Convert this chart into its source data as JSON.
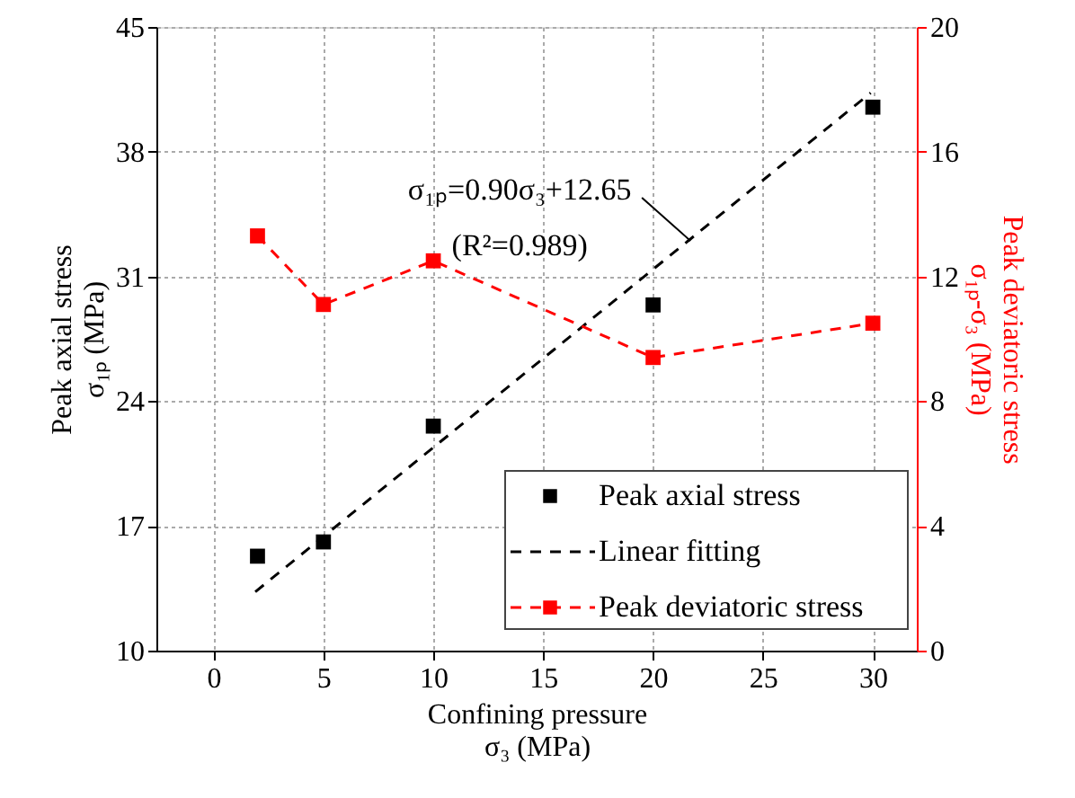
{
  "chart_data": {
    "type": "scatter",
    "xlabel": "Confining pressure\nσ₃ (MPa)",
    "ylabel": "Peak axial stress\nσ₁ₚ (MPa)",
    "y2label": "Peak deviatoric stress\nσ₁ₚ-σ₃ (MPa)",
    "xlim": [
      -2.6,
      32
    ],
    "xticks": [
      0,
      5,
      10,
      15,
      20,
      25,
      30
    ],
    "ylim": [
      10,
      45
    ],
    "yticks": [
      10,
      17,
      24,
      31,
      38,
      45
    ],
    "y2lim": [
      0,
      20
    ],
    "y2ticks": [
      0,
      4,
      8,
      12,
      16,
      20
    ],
    "grid": true,
    "legend": "bottom right",
    "annotations": [
      {
        "text": "σ₁ₚ=0.90σ₃+12.65\n(R²=0.989)",
        "x": 21.7,
        "y": 33
      }
    ],
    "series": [
      {
        "name": "Peak axial stress",
        "color": "#000000",
        "marker": "square",
        "x": [
          2,
          5,
          10,
          20,
          30
        ],
        "values": [
          15.3,
          16.1,
          22.6,
          29.4,
          40.5
        ]
      },
      {
        "name": "Linear fitting",
        "type": "line",
        "color": "#000000",
        "line_style": "dashed",
        "marker": "none",
        "x": [
          1.9,
          29.9
        ],
        "values": [
          13.3,
          41.3
        ]
      },
      {
        "name": "Peak deviatoric stress",
        "type": "line",
        "axis": "y2",
        "color": "#ff0000",
        "line_style": "dashed",
        "marker": "square",
        "x": [
          2,
          5,
          10,
          20,
          30
        ],
        "values": [
          13.3,
          11.1,
          12.5,
          9.4,
          10.5
        ]
      }
    ]
  }
}
